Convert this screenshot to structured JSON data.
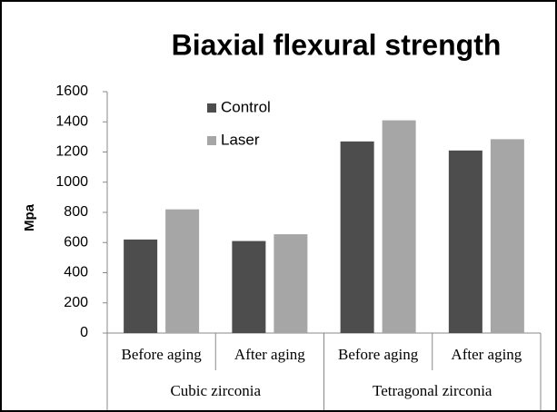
{
  "chart_data": {
    "type": "bar",
    "title": "Biaxial flexural strength",
    "y_label": "Mpa",
    "categories": [
      "Before aging",
      "After aging",
      "Before aging",
      "After aging"
    ],
    "groups": [
      "Cubic zirconia",
      "Tetragonal zirconia"
    ],
    "series": [
      {
        "name": "Control",
        "color": "#4d4d4d",
        "values": [
          620,
          610,
          1270,
          1210
        ]
      },
      {
        "name": "Laser",
        "color": "#a6a6a6",
        "values": [
          820,
          655,
          1410,
          1285
        ]
      }
    ],
    "ylim": [
      0,
      1600
    ],
    "yticks": [
      0,
      200,
      400,
      600,
      800,
      1000,
      1200,
      1400,
      1600
    ],
    "grid": false,
    "legend": "top-left"
  }
}
